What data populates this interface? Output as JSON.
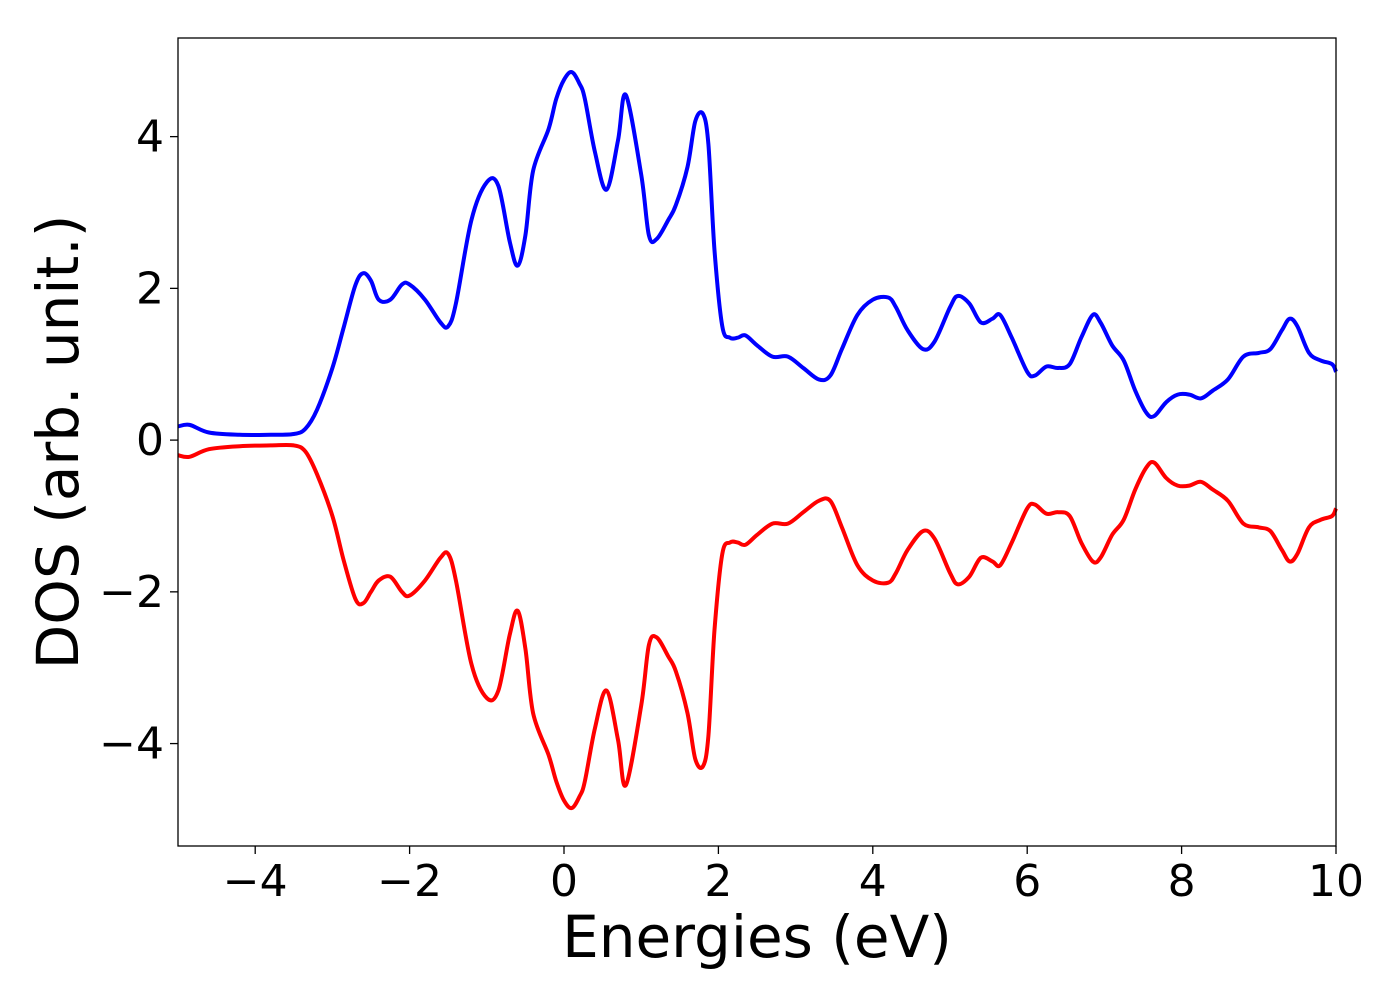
{
  "chart_data": {
    "type": "line",
    "xlabel": "Energies (eV)",
    "ylabel": "DOS (arb. unit.)",
    "xlim": [
      -5,
      10
    ],
    "ylim": [
      -5.35,
      5.3
    ],
    "xticks": [
      -4,
      -2,
      0,
      2,
      4,
      6,
      8,
      10
    ],
    "xtick_labels": [
      "−4",
      "−2",
      "0",
      "2",
      "4",
      "6",
      "8",
      "10"
    ],
    "yticks": [
      -4,
      -2,
      0,
      2,
      4
    ],
    "ytick_labels": [
      "−4",
      "−2",
      "0",
      "2",
      "4"
    ],
    "grid": false,
    "series": [
      {
        "color": "#0000ff",
        "x": [
          -5.0,
          -4.85,
          -4.6,
          -4.2,
          -3.8,
          -3.5,
          -3.35,
          -3.2,
          -3.0,
          -2.85,
          -2.7,
          -2.6,
          -2.5,
          -2.4,
          -2.25,
          -2.1,
          -2.0,
          -1.8,
          -1.6,
          -1.5,
          -1.4,
          -1.2,
          -1.0,
          -0.85,
          -0.7,
          -0.6,
          -0.5,
          -0.4,
          -0.2,
          -0.1,
          0.0,
          0.1,
          0.2,
          0.27,
          0.4,
          0.55,
          0.7,
          0.8,
          1.0,
          1.1,
          1.2,
          1.35,
          1.45,
          1.6,
          1.7,
          1.8,
          1.87,
          1.95,
          2.05,
          2.15,
          2.25,
          2.35,
          2.5,
          2.7,
          2.9,
          3.1,
          3.3,
          3.45,
          3.6,
          3.8,
          4.0,
          4.2,
          4.3,
          4.45,
          4.65,
          4.8,
          5.0,
          5.1,
          5.25,
          5.4,
          5.55,
          5.65,
          5.8,
          6.0,
          6.1,
          6.25,
          6.4,
          6.55,
          6.7,
          6.85,
          6.95,
          7.1,
          7.25,
          7.4,
          7.55,
          7.65,
          7.8,
          7.95,
          8.1,
          8.25,
          8.4,
          8.6,
          8.8,
          9.0,
          9.15,
          9.3,
          9.4,
          9.5,
          9.65,
          9.8,
          9.95,
          10.0
        ],
        "y": [
          0.18,
          0.2,
          0.1,
          0.07,
          0.07,
          0.08,
          0.15,
          0.4,
          0.95,
          1.5,
          2.05,
          2.2,
          2.1,
          1.85,
          1.85,
          2.05,
          2.05,
          1.85,
          1.55,
          1.5,
          1.8,
          2.9,
          3.4,
          3.35,
          2.6,
          2.3,
          2.7,
          3.55,
          4.1,
          4.5,
          4.75,
          4.85,
          4.7,
          4.5,
          3.8,
          3.3,
          3.95,
          4.55,
          3.5,
          2.7,
          2.65,
          2.9,
          3.1,
          3.6,
          4.2,
          4.3,
          3.9,
          2.5,
          1.5,
          1.35,
          1.35,
          1.38,
          1.25,
          1.1,
          1.1,
          0.95,
          0.8,
          0.85,
          1.2,
          1.65,
          1.85,
          1.88,
          1.75,
          1.45,
          1.2,
          1.3,
          1.75,
          1.9,
          1.8,
          1.55,
          1.6,
          1.65,
          1.35,
          0.9,
          0.85,
          0.97,
          0.95,
          1.0,
          1.35,
          1.65,
          1.55,
          1.25,
          1.05,
          0.65,
          0.35,
          0.32,
          0.5,
          0.6,
          0.6,
          0.55,
          0.65,
          0.8,
          1.1,
          1.15,
          1.2,
          1.45,
          1.6,
          1.5,
          1.15,
          1.05,
          1.0,
          0.9
        ]
      },
      {
        "color": "#ff0000",
        "x": [
          -5.0,
          -4.85,
          -4.6,
          -4.2,
          -3.8,
          -3.5,
          -3.35,
          -3.2,
          -3.0,
          -2.85,
          -2.7,
          -2.6,
          -2.5,
          -2.4,
          -2.25,
          -2.1,
          -2.0,
          -1.8,
          -1.6,
          -1.5,
          -1.4,
          -1.2,
          -1.0,
          -0.85,
          -0.7,
          -0.6,
          -0.5,
          -0.4,
          -0.2,
          -0.1,
          0.0,
          0.1,
          0.2,
          0.27,
          0.4,
          0.55,
          0.7,
          0.8,
          1.0,
          1.1,
          1.2,
          1.35,
          1.45,
          1.6,
          1.7,
          1.8,
          1.87,
          1.95,
          2.05,
          2.15,
          2.25,
          2.35,
          2.5,
          2.7,
          2.9,
          3.1,
          3.3,
          3.45,
          3.6,
          3.8,
          4.0,
          4.2,
          4.3,
          4.45,
          4.65,
          4.8,
          5.0,
          5.1,
          5.25,
          5.4,
          5.55,
          5.65,
          5.8,
          6.0,
          6.1,
          6.25,
          6.4,
          6.55,
          6.7,
          6.85,
          6.95,
          7.1,
          7.25,
          7.4,
          7.55,
          7.65,
          7.8,
          7.95,
          8.1,
          8.25,
          8.4,
          8.6,
          8.8,
          9.0,
          9.15,
          9.3,
          9.4,
          9.5,
          9.65,
          9.8,
          9.95,
          10.0
        ],
        "y": [
          -0.2,
          -0.22,
          -0.12,
          -0.08,
          -0.07,
          -0.07,
          -0.15,
          -0.45,
          -1.0,
          -1.6,
          -2.1,
          -2.15,
          -2.0,
          -1.85,
          -1.8,
          -2.0,
          -2.05,
          -1.85,
          -1.55,
          -1.5,
          -1.85,
          -2.95,
          -3.4,
          -3.3,
          -2.55,
          -2.25,
          -2.75,
          -3.6,
          -4.15,
          -4.5,
          -4.75,
          -4.85,
          -4.7,
          -4.5,
          -3.8,
          -3.3,
          -3.95,
          -4.55,
          -3.5,
          -2.7,
          -2.6,
          -2.85,
          -3.05,
          -3.6,
          -4.2,
          -4.3,
          -3.9,
          -2.5,
          -1.5,
          -1.35,
          -1.35,
          -1.38,
          -1.25,
          -1.1,
          -1.1,
          -0.95,
          -0.8,
          -0.8,
          -1.15,
          -1.65,
          -1.85,
          -1.88,
          -1.75,
          -1.45,
          -1.2,
          -1.3,
          -1.75,
          -1.9,
          -1.8,
          -1.55,
          -1.6,
          -1.65,
          -1.35,
          -0.9,
          -0.85,
          -0.97,
          -0.95,
          -1.0,
          -1.35,
          -1.6,
          -1.55,
          -1.25,
          -1.05,
          -0.65,
          -0.35,
          -0.3,
          -0.5,
          -0.6,
          -0.6,
          -0.55,
          -0.65,
          -0.8,
          -1.1,
          -1.15,
          -1.2,
          -1.45,
          -1.6,
          -1.5,
          -1.15,
          -1.05,
          -1.0,
          -0.9
        ]
      }
    ]
  }
}
